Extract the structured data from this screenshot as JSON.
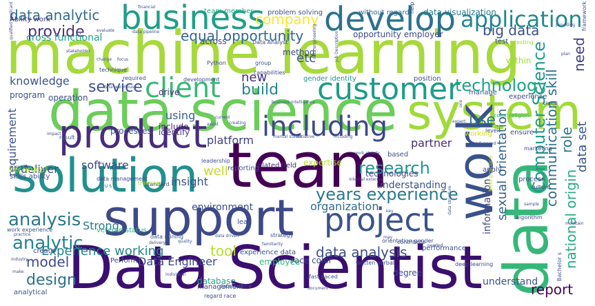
{
  "words": [
    {
      "text": "machine learning",
      "color": "#a7d93d"
    },
    {
      "text": "data science",
      "color": "#6ccd5a"
    },
    {
      "text": "Data Scientist",
      "color": "#3b0f70"
    },
    {
      "text": "support",
      "color": "#3e4989"
    },
    {
      "text": "team",
      "color": "#440154"
    },
    {
      "text": "solution",
      "color": "#22908d"
    },
    {
      "text": "system",
      "color": "#a0da39"
    },
    {
      "text": "work",
      "color": "#3a528b"
    },
    {
      "text": "data",
      "color": "#35b779"
    },
    {
      "text": "product",
      "color": "#472d7b"
    },
    {
      "text": "develop",
      "color": "#2c728e"
    },
    {
      "text": "business",
      "color": "#1f9e89"
    },
    {
      "text": "project",
      "color": "#3b528b"
    },
    {
      "text": "including",
      "color": "#3e4989"
    },
    {
      "text": "customer",
      "color": "#1e9c89"
    },
    {
      "text": "client",
      "color": "#38b977"
    },
    {
      "text": "application",
      "color": "#23888e"
    },
    {
      "text": "years experience",
      "color": "#2a788e"
    },
    {
      "text": "analysis",
      "color": "#2a788e"
    },
    {
      "text": "analytic",
      "color": "#25838e"
    },
    {
      "text": "research",
      "color": "#1f978b"
    },
    {
      "text": "technology",
      "color": "#20a386"
    },
    {
      "text": "data analytic",
      "color": "#2f6c8e"
    },
    {
      "text": "provide",
      "color": "#472f7d"
    },
    {
      "text": "service",
      "color": "#3c4f8a"
    },
    {
      "text": "build",
      "color": "#24868e"
    },
    {
      "text": "big data",
      "color": "#3b518b"
    },
    {
      "text": "company",
      "color": "#fde725"
    },
    {
      "text": "equal opportunity",
      "color": "#31668e"
    },
    {
      "text": "need",
      "color": "#424086"
    },
    {
      "text": "tool",
      "color": "#b5de2b"
    },
    {
      "text": "model",
      "color": "#3e4c8a"
    },
    {
      "text": "design",
      "color": "#2d708e"
    },
    {
      "text": "report",
      "color": "#440154"
    },
    {
      "text": "data analysis",
      "color": "#3d4e8a"
    },
    {
      "text": "Computer Science",
      "color": "#1f9a8a"
    },
    {
      "text": "communication skill",
      "color": "#2d708e"
    },
    {
      "text": "national origin",
      "color": "#25ab82"
    },
    {
      "text": "role",
      "color": "#2a788e"
    },
    {
      "text": "data set",
      "color": "#3b528b"
    },
    {
      "text": "sexual orientation",
      "color": "#355f8d"
    },
    {
      "text": "Experience working",
      "color": "#26828e"
    },
    {
      "text": "Data Engineer",
      "color": "#3f4788"
    },
    {
      "text": "knowledge",
      "color": "#3b528b"
    },
    {
      "text": "using",
      "color": "#33638d"
    },
    {
      "text": "software",
      "color": "#3e4989"
    },
    {
      "text": "platform",
      "color": "#424086"
    },
    {
      "text": "requirement",
      "color": "#3b528b"
    },
    {
      "text": "well",
      "color": "#c2df23"
    },
    {
      "text": "use",
      "color": "#2e6f8e"
    },
    {
      "text": "partner",
      "color": "#472c7a"
    },
    {
      "text": "etc",
      "color": "#3b518b"
    },
    {
      "text": "new",
      "color": "#472d7b"
    },
    {
      "text": "insight",
      "color": "#3c508b"
    },
    {
      "text": "deliver",
      "color": "#3e4a89"
    },
    {
      "text": "understanding",
      "color": "#3a548c"
    },
    {
      "text": "environment",
      "color": "#3d4d8a"
    },
    {
      "text": "organization",
      "color": "#31688e"
    },
    {
      "text": "information",
      "color": "#414487"
    },
    {
      "text": "Strong",
      "color": "#2a788e"
    },
    {
      "text": "understand",
      "color": "#3b528b"
    },
    {
      "text": "cross functional",
      "color": "#1fa088"
    },
    {
      "text": "method",
      "color": "#3e4989"
    },
    {
      "text": "program",
      "color": "#3b528b"
    },
    {
      "text": "operation",
      "color": "#3d4e8a"
    },
    {
      "text": "drive",
      "color": "#472a7a"
    },
    {
      "text": "include",
      "color": "#482475"
    },
    {
      "text": "identify",
      "color": "#46327e"
    },
    {
      "text": "processes",
      "color": "#3b528b"
    },
    {
      "text": "Ability work",
      "color": "#46327e"
    },
    {
      "text": "team member",
      "color": "#22a785"
    },
    {
      "text": "problem solving",
      "color": "#3b528b"
    },
    {
      "text": "opportunity employer",
      "color": "#3e4989"
    },
    {
      "text": "without regard",
      "color": "#31688e"
    },
    {
      "text": "data visualization",
      "color": "#287c8e"
    },
    {
      "text": "across",
      "color": "#3e4989"
    },
    {
      "text": "position",
      "color": "#3b528b"
    },
    {
      "text": "gender identity",
      "color": "#21918c"
    },
    {
      "text": "experience",
      "color": "#3e4989"
    },
    {
      "text": "manage",
      "color": "#3b528b"
    },
    {
      "text": "technologies",
      "color": "#3e4989"
    },
    {
      "text": "working",
      "color": "#c8e020"
    },
    {
      "text": "related field",
      "color": "#482878"
    },
    {
      "text": "expertise",
      "color": "#b5de2b"
    },
    {
      "text": "reporting",
      "color": "#3b528b"
    },
    {
      "text": "degree",
      "color": "#3e4989"
    },
    {
      "text": "performance",
      "color": "#3b528b"
    },
    {
      "text": "veteran status",
      "color": "#25ab82"
    },
    {
      "text": "race color",
      "color": "#3e4989"
    },
    {
      "text": "employee",
      "color": "#35b779"
    },
    {
      "text": "Perform",
      "color": "#3b528b"
    },
    {
      "text": "database",
      "color": "#25ab82"
    },
    {
      "text": "management",
      "color": "#3e4989"
    },
    {
      "text": "analytical",
      "color": "#3b528b"
    },
    {
      "text": "create",
      "color": "#3e4989"
    },
    {
      "text": "experience data",
      "color": "#3b528b"
    },
    {
      "text": "apply",
      "color": "#3e4989"
    },
    {
      "text": "ensure",
      "color": "#3b528b"
    },
    {
      "text": "process",
      "color": "#3e4989"
    },
    {
      "text": "lead",
      "color": "#3b528b"
    },
    {
      "text": "test",
      "color": "#3e4989"
    },
    {
      "text": "within",
      "color": "#a0da39"
    },
    {
      "text": "level",
      "color": "#3b528b"
    },
    {
      "text": "marketing",
      "color": "#3e4989"
    },
    {
      "text": "color religion",
      "color": "#25ab82"
    },
    {
      "text": "technical",
      "color": "#b5de2b"
    },
    {
      "text": "skills ability",
      "color": "#3b528b"
    },
    {
      "text": "data management",
      "color": "#3e4989"
    },
    {
      "text": "work experience",
      "color": "#3b528b"
    },
    {
      "text": "strategy",
      "color": "#3e4989"
    },
    {
      "text": "data mining",
      "color": "#3b528b"
    },
    {
      "text": "regard race",
      "color": "#3e4989"
    },
    {
      "text": "data source",
      "color": "#3b528b"
    },
    {
      "text": "Data Analyst",
      "color": "#3e4989"
    },
    {
      "text": "framework",
      "color": "#3b528b"
    },
    {
      "text": "help",
      "color": "#3e4989"
    },
    {
      "text": "business intelligence",
      "color": "#3b528b"
    },
    {
      "text": "standard",
      "color": "#3e4989"
    },
    {
      "text": "best practice",
      "color": "#b5de2b"
    },
    {
      "text": "culture",
      "color": "#3b528b"
    },
    {
      "text": "deep learning",
      "color": "#3e4989"
    },
    {
      "text": "Bachelor s",
      "color": "#3b528b"
    },
    {
      "text": "written verbal",
      "color": "#3e4989"
    },
    {
      "text": "fast paced",
      "color": "#3b528b"
    },
    {
      "text": "orientation gender",
      "color": "#3e4989"
    },
    {
      "text": "contribute",
      "color": "#3b528b"
    },
    {
      "text": "algorithm",
      "color": "#3e4989"
    },
    {
      "text": "leadership",
      "color": "#3b528b"
    },
    {
      "text": "technique",
      "color": "#3e4989"
    },
    {
      "text": "required",
      "color": "#3b528b"
    },
    {
      "text": "capabilities",
      "color": "#3e4989"
    },
    {
      "text": "group",
      "color": "#3b528b"
    },
    {
      "text": "development",
      "color": "#3e4989"
    },
    {
      "text": "data warehouse",
      "color": "#3b528b"
    },
    {
      "text": "Python",
      "color": "#3e4989"
    },
    {
      "text": "change",
      "color": "#3b528b"
    },
    {
      "text": "focus",
      "color": "#3e4989"
    },
    {
      "text": "expert",
      "color": "#3b528b"
    },
    {
      "text": "current",
      "color": "#3e4989"
    },
    {
      "text": "creating",
      "color": "#3b528b"
    },
    {
      "text": "evaluate",
      "color": "#3e4989"
    },
    {
      "text": "data pipeline",
      "color": "#3b528b"
    },
    {
      "text": "stakeholder",
      "color": "#3e4989"
    },
    {
      "text": "financial",
      "color": "#3b528b"
    },
    {
      "text": "testing",
      "color": "#a0da39"
    },
    {
      "text": "providing",
      "color": "#3e4989"
    },
    {
      "text": "quality",
      "color": "#3b528b"
    },
    {
      "text": "industry",
      "color": "#3e4989"
    },
    {
      "text": "make",
      "color": "#3b528b"
    },
    {
      "text": "may",
      "color": "#3e4989"
    },
    {
      "text": "individual",
      "color": "#3b528b"
    },
    {
      "text": "clinical",
      "color": "#3e4989"
    },
    {
      "text": "assist",
      "color": "#3b528b"
    },
    {
      "text": "impact",
      "color": "#3e4989"
    },
    {
      "text": "result",
      "color": "#3b528b"
    },
    {
      "text": "training",
      "color": "#b5de2b"
    },
    {
      "text": "qualified applicant",
      "color": "#3e4989"
    },
    {
      "text": "data driven",
      "color": "#3b528b"
    },
    {
      "text": "familiarity",
      "color": "#3e4989"
    },
    {
      "text": "marital status",
      "color": "#3b528b"
    },
    {
      "text": "initiative",
      "color": "#3e4989"
    },
    {
      "text": "based",
      "color": "#3b528b"
    },
    {
      "text": "delivery",
      "color": "#3e4989"
    },
    {
      "text": "practice",
      "color": "#3b528b"
    },
    {
      "text": "sample",
      "color": "#3e4989"
    },
    {
      "text": "area",
      "color": "#3b528b"
    },
    {
      "text": "needed",
      "color": "#3e4989"
    },
    {
      "text": "Job Description",
      "color": "#3b528b"
    },
    {
      "text": "data engineering",
      "color": "#3e4989"
    },
    {
      "text": "work closely",
      "color": "#3b528b"
    },
    {
      "text": "internal external",
      "color": "#3e4989"
    },
    {
      "text": "data structure",
      "color": "#3b528b"
    },
    {
      "text": "scientific",
      "color": "#3e4989"
    },
    {
      "text": "advanced",
      "color": "#3b528b"
    },
    {
      "text": "plan",
      "color": "#3e4989"
    },
    {
      "text": "document",
      "color": "#3b528b"
    },
    {
      "text": "maintain",
      "color": "#3e4989"
    },
    {
      "text": "one",
      "color": "#3b528b"
    },
    {
      "text": "U S",
      "color": "#3e4989"
    },
    {
      "text": "key",
      "color": "#3b528b"
    },
    {
      "text": "including",
      "color": "#3e4989"
    }
  ]
}
